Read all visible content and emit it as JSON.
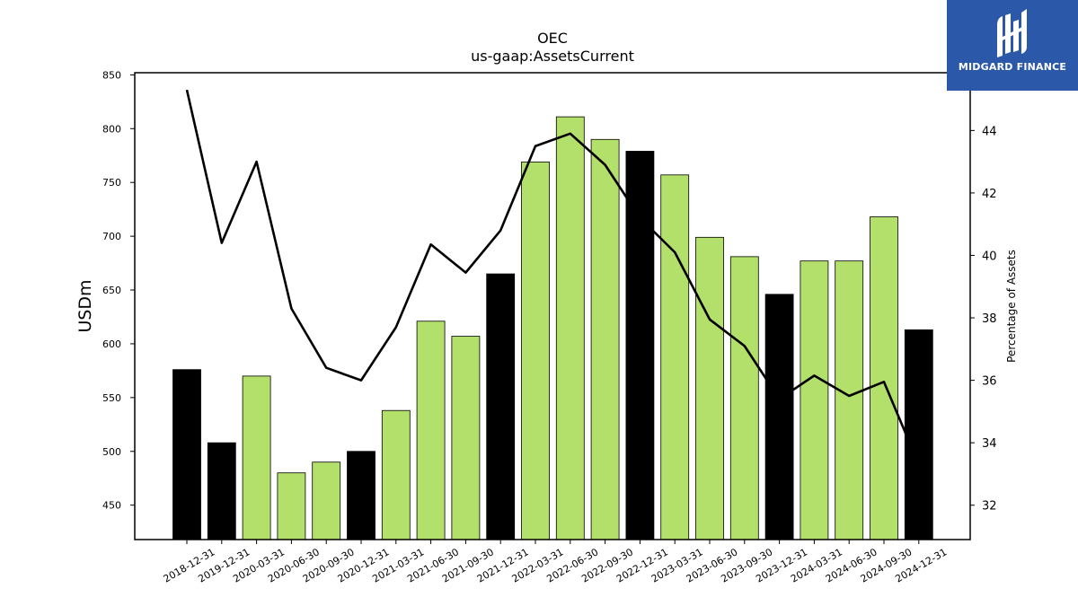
{
  "chart_data": {
    "type": "bar",
    "title": "OEC",
    "subtitle": "us-gaap:AssetsCurrent",
    "ylabel": "USDm",
    "y2label": "Percentage of Assets",
    "ylim": [
      418,
      852
    ],
    "y2lim": [
      30.9,
      45.85
    ],
    "yticks": [
      450,
      500,
      550,
      600,
      650,
      700,
      750,
      800,
      850
    ],
    "y2ticks": [
      32,
      34,
      36,
      38,
      40,
      42,
      44
    ],
    "categories": [
      "2018-12-31",
      "2019-12-31",
      "2020-03-31",
      "2020-06-30",
      "2020-09-30",
      "2020-12-31",
      "2021-03-31",
      "2021-06-30",
      "2021-09-30",
      "2021-12-31",
      "2022-03-31",
      "2022-06-30",
      "2022-09-30",
      "2022-12-31",
      "2023-03-31",
      "2023-06-30",
      "2023-09-30",
      "2023-12-31",
      "2024-03-31",
      "2024-06-30",
      "2024-09-30",
      "2024-12-31"
    ],
    "series": [
      {
        "type": "bar",
        "values": [
          576,
          508,
          570,
          480,
          490,
          500,
          538,
          621,
          607,
          665,
          769,
          811,
          790,
          779,
          757,
          699,
          681,
          646,
          677,
          677,
          718,
          613
        ],
        "colors": [
          "#000000",
          "#000000",
          "#b3df6b",
          "#b3df6b",
          "#b3df6b",
          "#000000",
          "#b3df6b",
          "#b3df6b",
          "#b3df6b",
          "#000000",
          "#b3df6b",
          "#b3df6b",
          "#b3df6b",
          "#000000",
          "#b3df6b",
          "#b3df6b",
          "#b3df6b",
          "#000000",
          "#b3df6b",
          "#b3df6b",
          "#b3df6b",
          "#000000"
        ]
      },
      {
        "type": "line",
        "axis": "right",
        "color": "#000000",
        "values": [
          45.3,
          40.4,
          43.0,
          38.3,
          36.4,
          36.0,
          37.7,
          40.35,
          39.45,
          40.8,
          43.5,
          43.9,
          42.9,
          41.2,
          40.1,
          37.95,
          37.1,
          35.4,
          36.15,
          35.5,
          35.95,
          33.3
        ]
      }
    ],
    "legend": "none",
    "grid": false
  },
  "logo": {
    "text": "MIDGARD FINANCE",
    "background": "#2b58a8"
  }
}
